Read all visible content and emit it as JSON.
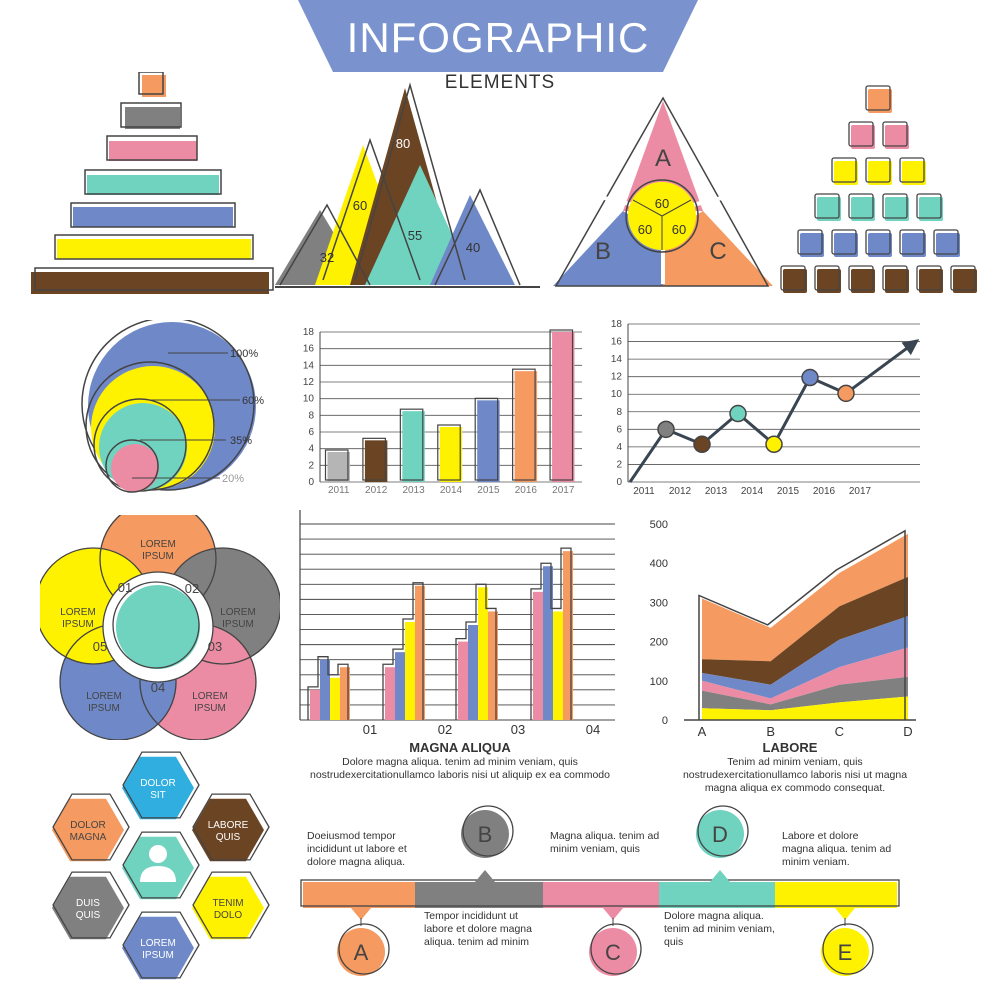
{
  "header": {
    "title": "INFOGRAPHIC",
    "subtitle": "ELEMENTS"
  },
  "colors": {
    "orange": "#f59a60",
    "gray": "#808080",
    "pink": "#ec8ca4",
    "teal": "#6fd3c0",
    "blue": "#6f88c8",
    "yellow": "#fff200",
    "brown": "#6b4423",
    "lightgray": "#b5b5b5",
    "cyan": "#30aee0",
    "outline": "#444444",
    "title_band": "#7a93cf"
  },
  "mountains": {
    "values": [
      "32",
      "60",
      "80",
      "55",
      "40"
    ]
  },
  "triangle": {
    "sections": [
      "A",
      "B",
      "C"
    ],
    "values": [
      "60",
      "60",
      "60"
    ]
  },
  "circles": {
    "labels": [
      "100%",
      "60%",
      "35%",
      "20%"
    ]
  },
  "flower": {
    "petals": [
      {
        "num": "01",
        "label": "LOREM IPSUM"
      },
      {
        "num": "02",
        "label": "LOREM IPSUM"
      },
      {
        "num": "03",
        "label": "LOREM IPSUM"
      },
      {
        "num": "04",
        "label": "LOREM IPSUM"
      },
      {
        "num": "05",
        "label": "LOREM IPSUM"
      }
    ]
  },
  "hexagons": {
    "items": [
      "DOLOR SIT",
      "DOLOR MAGNA",
      "LABORE QUIS",
      "DUIS QUIS",
      "TENIM DOLO",
      "LOREM IPSUM"
    ],
    "center_icon": "person-icon"
  },
  "captions": {
    "magna": {
      "title": "MAGNA ALIQUA",
      "body": "Dolore magna aliqua. tenim ad minim veniam, quis nostrudexercitationullamco laboris nisi ut aliquip ex ea commodo"
    },
    "labore": {
      "title": "LABORE",
      "body": "Tenim ad minim veniam, quis nostrudexercitationullamco laboris nisi ut magna magna aliqua  ex commodo consequat."
    }
  },
  "timeline": {
    "nodes": [
      "A",
      "B",
      "C",
      "D",
      "E"
    ],
    "texts": [
      "Doeiusmod tempor incididunt ut labore et dolore magna aliqua.",
      "Magna aliqua. tenim ad minim veniam, quis",
      "Labore et dolore magna aliqua. tenim ad minim veniam.",
      "Tempor incididunt ut labore et dolore magna aliqua. tenim ad minim",
      "Dolore magna aliqua. tenim ad minim veniam, quis"
    ]
  },
  "chart_data": [
    {
      "type": "bar",
      "categories": [
        "2011",
        "2012",
        "2013",
        "2014",
        "2015",
        "2016",
        "2017"
      ],
      "values": [
        3.6,
        5.0,
        8.5,
        6.6,
        9.8,
        13.3,
        18
      ],
      "colors": [
        "#b5b5b5",
        "#6b4423",
        "#6fd3c0",
        "#fff200",
        "#6f88c8",
        "#f59a60",
        "#ec8ca4"
      ],
      "yticks": [
        "0",
        "2",
        "4",
        "6",
        "8",
        "10",
        "12",
        "14",
        "16",
        "18"
      ],
      "ylim": [
        0,
        18
      ],
      "grid": true
    },
    {
      "type": "line",
      "x": [
        "2011",
        "2012",
        "2013",
        "2014",
        "2015",
        "2016",
        "2017"
      ],
      "values": [
        0,
        6,
        4.3,
        7.8,
        4.3,
        11.9,
        10.1
      ],
      "point_colors": [
        "none",
        "#808080",
        "#6b4423",
        "#6fd3c0",
        "#fff200",
        "#6f88c8",
        "#f59a60"
      ],
      "arrow_end": 16,
      "yticks": [
        "0",
        "2",
        "4",
        "6",
        "8",
        "10",
        "12",
        "14",
        "16",
        "18"
      ],
      "ylim": [
        0,
        18
      ],
      "grid": true
    },
    {
      "type": "bar",
      "categories": [
        "01",
        "02",
        "03",
        "04"
      ],
      "series_colors": [
        "#ec8ca4",
        "#6f88c8",
        "#fff200",
        "#f59a60"
      ],
      "series": [
        {
          "values": [
            2,
            3.5,
            5.2,
            8.5
          ]
        },
        {
          "values": [
            4,
            4.5,
            6.3,
            10.2
          ]
        },
        {
          "values": [
            2.8,
            6.5,
            8.8,
            7.2
          ]
        },
        {
          "values": [
            3.5,
            8.9,
            7.2,
            11.2
          ]
        }
      ],
      "ylim": [
        0,
        13
      ],
      "grid": true
    },
    {
      "type": "area",
      "categories": [
        "A",
        "B",
        "C",
        "D"
      ],
      "series_colors": [
        "#fff200",
        "#808080",
        "#ec8ca4",
        "#6f88c8",
        "#6b4423",
        "#f59a60"
      ],
      "cumulative": [
        [
          30,
          25,
          45,
          60
        ],
        [
          75,
          40,
          90,
          110
        ],
        [
          100,
          55,
          135,
          185
        ],
        [
          120,
          90,
          205,
          265
        ],
        [
          155,
          150,
          290,
          365
        ],
        [
          310,
          235,
          375,
          475
        ]
      ],
      "yticks": [
        "0",
        "100",
        "200",
        "300",
        "400",
        "500"
      ],
      "ylim": [
        0,
        500
      ],
      "grid": false
    }
  ]
}
